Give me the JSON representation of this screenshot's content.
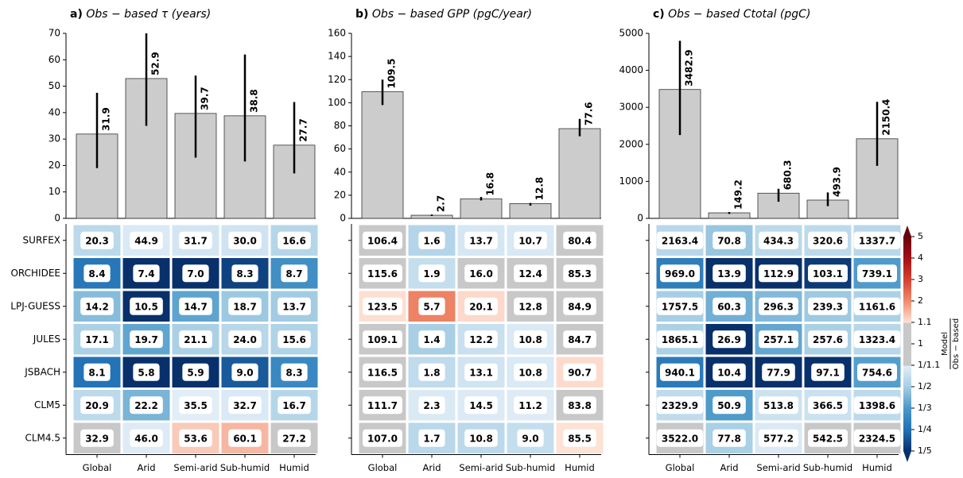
{
  "chart_data": [
    {
      "type": "bar",
      "label": "a)",
      "title": "Obs − based τ (years)",
      "color": "#cccccc",
      "categories": [
        "Global",
        "Arid",
        "Semi-arid",
        "Sub-humid",
        "Humid"
      ],
      "values": [
        31.9,
        52.9,
        39.7,
        38.8,
        27.7
      ],
      "err_low": [
        19,
        35,
        23,
        21.5,
        17
      ],
      "err_high": [
        47.5,
        70,
        54,
        62,
        44
      ],
      "ylim": [
        0,
        70
      ],
      "yticks": [
        0,
        10,
        20,
        30,
        40,
        50,
        60,
        70
      ],
      "heatmap": {
        "rows": [
          "SURFEX",
          "ORCHIDEE",
          "LPJ-GUESS",
          "JULES",
          "JSBACH",
          "CLM5",
          "CLM4.5"
        ],
        "values": [
          [
            20.3,
            44.9,
            31.7,
            30.0,
            16.6
          ],
          [
            8.4,
            7.4,
            7.0,
            8.3,
            8.7
          ],
          [
            14.2,
            10.5,
            14.7,
            18.7,
            13.7
          ],
          [
            17.1,
            19.7,
            21.1,
            24.0,
            15.6
          ],
          [
            8.1,
            5.8,
            5.9,
            9.0,
            8.3
          ],
          [
            20.9,
            22.2,
            35.5,
            32.7,
            16.7
          ],
          [
            32.9,
            46.0,
            53.6,
            60.1,
            27.2
          ]
        ],
        "value_labels": [
          [
            "20.3",
            "44.9",
            "31.7",
            "30.0",
            "16.6"
          ],
          [
            "8.4",
            "7.4",
            "7.0",
            "8.3",
            "8.7"
          ],
          [
            "14.2",
            "10.5",
            "14.7",
            "18.7",
            "13.7"
          ],
          [
            "17.1",
            "19.7",
            "21.1",
            "24.0",
            "15.6"
          ],
          [
            "8.1",
            "5.8",
            "5.9",
            "9.0",
            "8.3"
          ],
          [
            "20.9",
            "22.2",
            "35.5",
            "32.7",
            "16.7"
          ],
          [
            "32.9",
            "46.0",
            "53.6",
            "60.1",
            "27.2"
          ]
        ]
      }
    },
    {
      "type": "bar",
      "label": "b)",
      "title": "Obs − based GPP (pgC/year)",
      "color": "#cccccc",
      "categories": [
        "Global",
        "Arid",
        "Semi-arid",
        "Sub-humid",
        "Humid"
      ],
      "values": [
        109.5,
        2.7,
        16.8,
        12.8,
        77.6
      ],
      "err_low": [
        98,
        2.1,
        15.5,
        11.0,
        71
      ],
      "err_high": [
        120,
        3.3,
        18.5,
        13.3,
        86
      ],
      "ylim": [
        0,
        160
      ],
      "yticks": [
        0,
        20,
        40,
        60,
        80,
        100,
        120,
        140,
        160
      ],
      "heatmap": {
        "values": [
          [
            106.4,
            1.6,
            13.7,
            10.7,
            80.4
          ],
          [
            115.6,
            1.9,
            16.0,
            12.4,
            85.3
          ],
          [
            123.5,
            5.7,
            20.1,
            12.8,
            84.9
          ],
          [
            109.1,
            1.4,
            12.2,
            10.8,
            84.7
          ],
          [
            116.5,
            1.8,
            13.1,
            10.8,
            90.7
          ],
          [
            111.7,
            2.3,
            14.5,
            11.2,
            83.8
          ],
          [
            107.0,
            1.7,
            10.8,
            9.0,
            85.5
          ]
        ],
        "value_labels": [
          [
            "106.4",
            "1.6",
            "13.7",
            "10.7",
            "80.4"
          ],
          [
            "115.6",
            "1.9",
            "16.0",
            "12.4",
            "85.3"
          ],
          [
            "123.5",
            "5.7",
            "20.1",
            "12.8",
            "84.9"
          ],
          [
            "109.1",
            "1.4",
            "12.2",
            "10.8",
            "84.7"
          ],
          [
            "116.5",
            "1.8",
            "13.1",
            "10.8",
            "90.7"
          ],
          [
            "111.7",
            "2.3",
            "14.5",
            "11.2",
            "83.8"
          ],
          [
            "107.0",
            "1.7",
            "10.8",
            "9.0",
            "85.5"
          ]
        ]
      }
    },
    {
      "type": "bar",
      "label": "c)",
      "title": "Obs − based Ctotal (pgC)",
      "color": "#cccccc",
      "categories": [
        "Global",
        "Arid",
        "Semi-arid",
        "Sub-humid",
        "Humid"
      ],
      "values": [
        3482.9,
        149.2,
        680.3,
        493.9,
        2150.4
      ],
      "err_low": [
        2250,
        120,
        450,
        330,
        1420
      ],
      "err_high": [
        4800,
        170,
        800,
        700,
        3150
      ],
      "ylim": [
        0,
        5000
      ],
      "yticks": [
        0,
        1000,
        2000,
        3000,
        4000,
        5000
      ],
      "heatmap": {
        "values": [
          [
            2163.4,
            70.8,
            434.3,
            320.6,
            1337.7
          ],
          [
            969.0,
            13.9,
            112.9,
            103.1,
            739.1
          ],
          [
            1757.5,
            60.3,
            296.3,
            239.3,
            1161.6
          ],
          [
            1865.1,
            26.9,
            257.1,
            257.6,
            1323.4
          ],
          [
            940.1,
            10.4,
            77.9,
            97.1,
            754.6
          ],
          [
            2329.9,
            50.9,
            513.8,
            366.5,
            1398.6
          ],
          [
            3522.0,
            77.8,
            577.2,
            542.5,
            2324.5
          ]
        ],
        "value_labels": [
          [
            "2163.4",
            "70.8",
            "434.3",
            "320.6",
            "1337.7"
          ],
          [
            "969.0",
            "13.9",
            "112.9",
            "103.1",
            "739.1"
          ],
          [
            "1757.5",
            "60.3",
            "296.3",
            "239.3",
            "1161.6"
          ],
          [
            "1865.1",
            "26.9",
            "257.1",
            "257.6",
            "1323.4"
          ],
          [
            "940.1",
            "10.4",
            "77.9",
            "97.1",
            "754.6"
          ],
          [
            "2329.9",
            "50.9",
            "513.8",
            "366.5",
            "1398.6"
          ],
          [
            "3522.0",
            "77.8",
            "577.2",
            "542.5",
            "2324.5"
          ]
        ]
      },
      "colorbar": {
        "label_numerator": "Model",
        "label_denominator": "Obs − based",
        "ticks": [
          5,
          4,
          3,
          2,
          1.1,
          1,
          {
            "value": 0.909,
            "label": "1/1.1"
          },
          {
            "value": 0.5,
            "label": "1/2"
          },
          {
            "value": 0.333,
            "label": "1/3"
          },
          {
            "value": 0.25,
            "label": "1/4"
          },
          {
            "value": 0.2,
            "label": "1/5"
          }
        ]
      }
    }
  ]
}
